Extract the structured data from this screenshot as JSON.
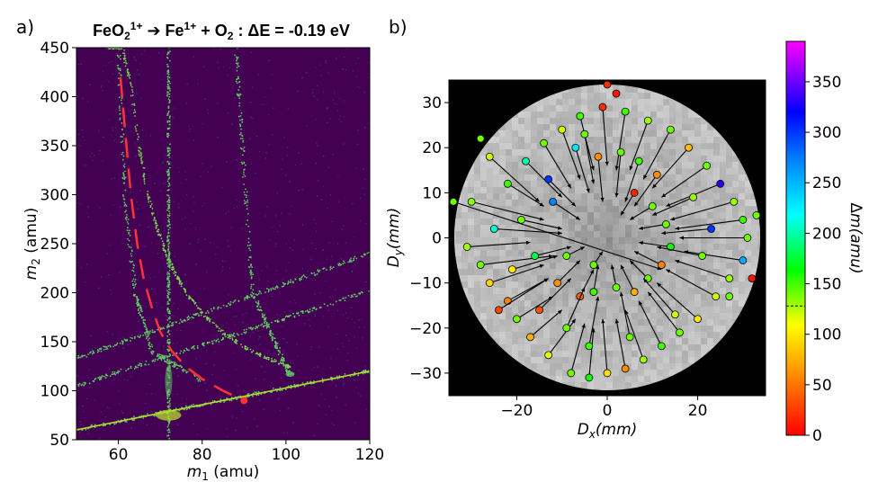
{
  "panels": {
    "a": "a)",
    "b": "b)"
  },
  "chart_data": [
    {
      "type": "heatmap",
      "title": "FeO₂¹⁺ → Fe¹⁺ + O₂ : ΔE = -0.19 eV",
      "xlabel": "m₁ (amu)",
      "ylabel": "m₂ (amu)",
      "xlim": [
        50,
        120
      ],
      "ylim": [
        50,
        450
      ],
      "xticks": [
        60,
        80,
        100,
        120
      ],
      "yticks": [
        50,
        100,
        150,
        200,
        250,
        300,
        350,
        400,
        450
      ],
      "background": "#440154",
      "curves": [
        {
          "name": "fe-o2-curve",
          "m_product": 56,
          "m_neutral": 32,
          "points_x": [
            57,
            59,
            61,
            63,
            65,
            67,
            69,
            71,
            73,
            76,
            80,
            85,
            90,
            95,
            100,
            101
          ]
        },
        {
          "name": "line-72",
          "kind": "vertical",
          "x": 72
        },
        {
          "name": "diag-line",
          "points": [
            [
              50,
              60
            ],
            [
              120,
              120
            ]
          ]
        },
        {
          "name": "track-a",
          "points": [
            [
              50,
              133
            ],
            [
              120,
              240
            ]
          ]
        },
        {
          "name": "track-b",
          "points": [
            [
              50,
              105
            ],
            [
              120,
              202
            ]
          ]
        },
        {
          "name": "track-c",
          "points": [
            [
              88,
              450
            ],
            [
              92,
              200
            ],
            [
              101,
              115
            ]
          ]
        },
        {
          "name": "track-d",
          "points": [
            [
              60,
              450
            ],
            [
              61.5,
              300
            ],
            [
              64,
              200
            ],
            [
              68,
              140
            ],
            [
              80,
              110
            ]
          ]
        }
      ],
      "red_dashed_curve": {
        "x": [
          60.5,
          61.5,
          63,
          64.5,
          66,
          68,
          70,
          72.5,
          76,
          80,
          85,
          90
        ],
        "y": [
          420,
          370,
          300,
          250,
          215,
          185,
          160,
          142,
          125,
          112,
          100,
          90
        ]
      },
      "endpoint_marker": {
        "x": 90,
        "y": 90,
        "color": "#ff3333"
      }
    },
    {
      "type": "scatter",
      "xlabel": "Dₓ(mm)",
      "ylabel": "D_y(mm)",
      "xlim": [
        -35,
        35
      ],
      "ylim": [
        -35,
        35
      ],
      "xticks": [
        -20,
        0,
        20
      ],
      "yticks": [
        -30,
        -20,
        -10,
        0,
        10,
        20,
        30
      ],
      "detector_radius": 34,
      "colorbar": {
        "label": "Δm(amu)",
        "min": 0,
        "max": 390,
        "ticks": [
          0,
          50,
          100,
          150,
          200,
          250,
          300,
          350
        ],
        "dashed_mark": 128
      },
      "arrows": [
        [
          -26,
          18,
          -15,
          8,
          120
        ],
        [
          -22,
          12,
          -14,
          7,
          150
        ],
        [
          -30,
          8,
          -14,
          4,
          135
        ],
        [
          -25,
          2,
          -10,
          1,
          210
        ],
        [
          -31,
          -2,
          -17,
          -1,
          130
        ],
        [
          -28,
          -6,
          -12,
          -4,
          140
        ],
        [
          -26,
          -10,
          -14,
          -6,
          90
        ],
        [
          -22,
          -14,
          -13,
          -9,
          55
        ],
        [
          -20,
          -18,
          -12,
          -13,
          140
        ],
        [
          -17,
          -22,
          -10,
          -16,
          75
        ],
        [
          -13,
          -26,
          -7,
          -18,
          115
        ],
        [
          -8,
          -30,
          -5,
          -19,
          140
        ],
        [
          -4,
          -31,
          -3,
          -20,
          160
        ],
        [
          0,
          -30,
          -1,
          -18,
          95
        ],
        [
          4,
          -29,
          2,
          -18,
          60
        ],
        [
          8,
          -27,
          4,
          -16,
          130
        ],
        [
          12,
          -24,
          7,
          -14,
          150
        ],
        [
          16,
          -21,
          9,
          -12,
          140
        ],
        [
          20,
          -18,
          11,
          -10,
          100
        ],
        [
          24,
          -13,
          13,
          -7,
          120
        ],
        [
          27,
          -9,
          15,
          -5,
          130
        ],
        [
          30,
          -5,
          17,
          -3,
          255
        ],
        [
          31,
          0,
          16,
          0,
          140
        ],
        [
          30,
          4,
          15,
          2,
          150
        ],
        [
          28,
          8,
          14,
          4,
          130
        ],
        [
          25,
          12,
          13,
          7,
          330
        ],
        [
          22,
          16,
          12,
          9,
          140
        ],
        [
          18,
          20,
          10,
          11,
          80
        ],
        [
          14,
          24,
          8,
          13,
          140
        ],
        [
          9,
          26,
          5,
          15,
          130
        ],
        [
          4,
          28,
          2,
          15,
          150
        ],
        [
          -1,
          29,
          0,
          16,
          20
        ],
        [
          -6,
          27,
          -3,
          15,
          150
        ],
        [
          -10,
          24,
          -6,
          13,
          120
        ],
        [
          -14,
          21,
          -8,
          11,
          140
        ],
        [
          -18,
          17,
          -10,
          9,
          200
        ],
        [
          -34,
          8,
          12,
          -7,
          140
        ],
        [
          -7,
          20,
          -4,
          10,
          230
        ],
        [
          -2,
          18,
          -1,
          8,
          60
        ],
        [
          3,
          19,
          2,
          9,
          140
        ],
        [
          7,
          17,
          4,
          8,
          150
        ],
        [
          11,
          14,
          6,
          7,
          60
        ],
        [
          -12,
          8,
          -6,
          4,
          270
        ],
        [
          -9,
          -4,
          -5,
          -2,
          140
        ],
        [
          -11,
          -10,
          -6,
          -5,
          60
        ],
        [
          -6,
          -13,
          -3,
          -7,
          40
        ],
        [
          -3,
          -12,
          -2,
          -6,
          150
        ],
        [
          2,
          -11,
          1,
          -6,
          140
        ],
        [
          6,
          -12,
          3,
          -6,
          75
        ],
        [
          9,
          -9,
          5,
          -5,
          140
        ],
        [
          12,
          -6,
          6,
          -3,
          55
        ],
        [
          14,
          -2,
          7,
          -1,
          160
        ],
        [
          13,
          3,
          7,
          2,
          140
        ],
        [
          10,
          7,
          5,
          4,
          140
        ],
        [
          6,
          10,
          3,
          5,
          15
        ],
        [
          -16,
          -4,
          -8,
          -2,
          180
        ],
        [
          -19,
          4,
          -10,
          2,
          140
        ],
        [
          -21,
          -7,
          -11,
          -4,
          100
        ],
        [
          21,
          -4,
          11,
          -2,
          140
        ],
        [
          23,
          2,
          12,
          1,
          300
        ],
        [
          -15,
          -16,
          -8,
          -9,
          35
        ],
        [
          -9,
          -20,
          -5,
          -11,
          140
        ],
        [
          15,
          -17,
          8,
          -9,
          120
        ],
        [
          -4,
          -24,
          -2,
          -13,
          150
        ],
        [
          5,
          -22,
          3,
          -12,
          140
        ],
        [
          -24,
          -16,
          -13,
          -9,
          30
        ],
        [
          -5,
          23,
          -3,
          12,
          140
        ],
        [
          19,
          9,
          10,
          5,
          130
        ],
        [
          -13,
          13,
          -7,
          7,
          300
        ],
        [
          -3,
          -6,
          -1,
          -3,
          140
        ]
      ],
      "stray_points": [
        [
          0,
          34,
          20
        ],
        [
          2,
          32,
          10
        ],
        [
          -28,
          22,
          140
        ],
        [
          27,
          -13,
          140
        ],
        [
          32,
          -9,
          10
        ],
        [
          33,
          5,
          140
        ]
      ]
    }
  ]
}
